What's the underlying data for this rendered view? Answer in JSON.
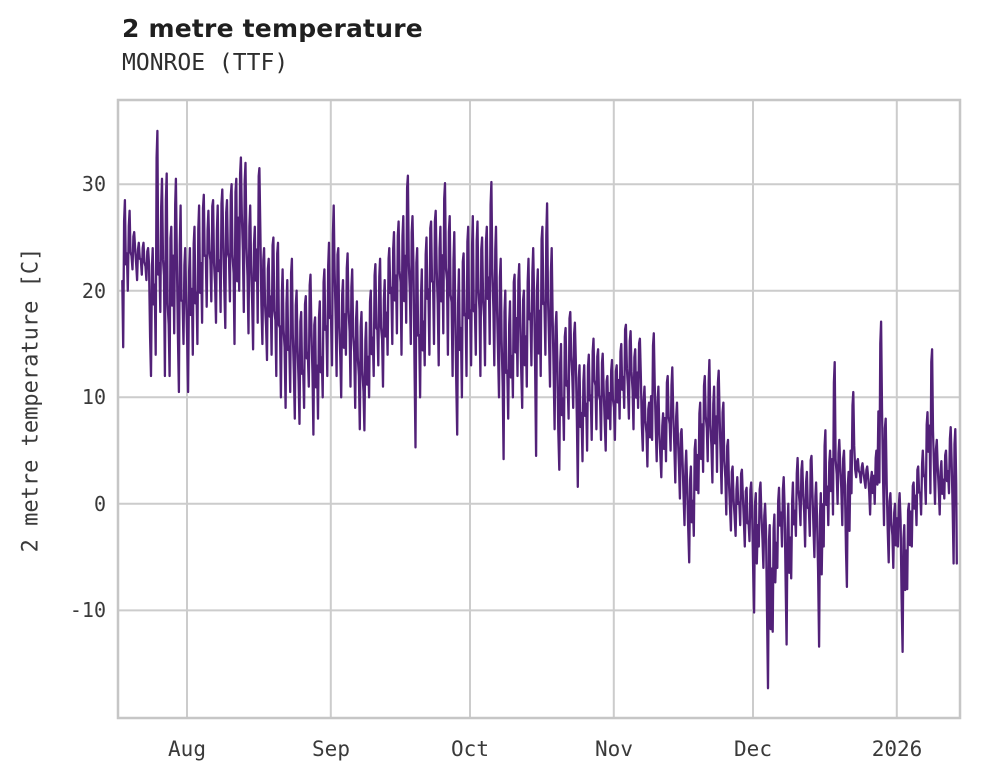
{
  "header": {
    "title": "2 metre temperature",
    "subtitle": "MONROE (TTF)"
  },
  "chart_data": {
    "type": "line",
    "title": "2 metre temperature",
    "subtitle": "MONROE (TTF)",
    "xlabel": "",
    "ylabel": "2 metre temperature [C]",
    "series_name": "2 metre temperature",
    "line_color": "#522178",
    "grid_color": "#cccccc",
    "border_color": "#c6c6c6",
    "tick_text_color": "#3a3a3a",
    "grid": true,
    "legend": false,
    "ylim": [
      -20.1,
      37.9
    ],
    "y_ticks": [
      30,
      20,
      10,
      0,
      -10
    ],
    "x_ticks": [
      {
        "label": "Aug",
        "day": 14
      },
      {
        "label": "Sep",
        "day": 45
      },
      {
        "label": "Oct",
        "day": 75
      },
      {
        "label": "Nov",
        "day": 106
      },
      {
        "label": "Dec",
        "day": 136
      },
      {
        "label": "2026",
        "day": 167
      }
    ],
    "x_offset_days": 0.87,
    "x_total_days": 181.5,
    "points_per_day_pattern": [
      0.05,
      0.25,
      0.45,
      0.62,
      0.82
    ],
    "daily_min_max": [
      [
        14.7,
        28.5
      ],
      [
        20,
        27.5
      ],
      [
        22,
        25.5
      ],
      [
        21,
        24.5
      ],
      [
        21.5,
        24.5
      ],
      [
        21,
        24
      ],
      [
        12,
        24
      ],
      [
        14,
        35
      ],
      [
        18,
        30.5
      ],
      [
        12,
        31
      ],
      [
        12,
        26
      ],
      [
        16,
        30.5
      ],
      [
        10.5,
        28
      ],
      [
        15,
        24
      ],
      [
        10.5,
        24
      ],
      [
        14,
        26
      ],
      [
        15,
        28
      ],
      [
        17,
        29
      ],
      [
        18.5,
        27.5
      ],
      [
        19,
        28.5
      ],
      [
        17,
        28
      ],
      [
        18,
        29.5
      ],
      [
        16.5,
        28.5
      ],
      [
        19,
        30
      ],
      [
        15,
        30.5
      ],
      [
        20,
        32.5
      ],
      [
        18,
        32
      ],
      [
        16,
        28
      ],
      [
        14.5,
        26
      ],
      [
        17,
        31.5
      ],
      [
        15,
        24
      ],
      [
        13.5,
        23
      ],
      [
        14,
        25
      ],
      [
        12,
        24.5
      ],
      [
        10,
        22
      ],
      [
        9,
        21
      ],
      [
        10.5,
        23
      ],
      [
        8,
        20
      ],
      [
        7.5,
        18
      ],
      [
        9,
        19.5
      ],
      [
        11,
        21.5
      ],
      [
        6.5,
        17.5
      ],
      [
        8,
        19
      ],
      [
        10,
        22
      ],
      [
        12,
        24.5
      ],
      [
        13,
        28
      ],
      [
        12,
        24
      ],
      [
        10,
        21
      ],
      [
        14,
        23.5
      ],
      [
        11,
        22
      ],
      [
        9,
        19
      ],
      [
        7,
        18
      ],
      [
        6.9,
        17
      ],
      [
        10,
        20
      ],
      [
        12,
        22.5
      ],
      [
        13,
        23
      ],
      [
        11,
        21
      ],
      [
        14,
        24
      ],
      [
        15,
        25.5
      ],
      [
        16,
        26.5
      ],
      [
        14,
        27
      ],
      [
        17,
        30.8
      ],
      [
        15,
        27
      ],
      [
        5.3,
        24
      ],
      [
        10,
        22
      ],
      [
        13,
        25
      ],
      [
        14,
        26.5
      ],
      [
        15,
        27.5
      ],
      [
        13,
        26
      ],
      [
        16,
        30.1
      ],
      [
        14,
        27
      ],
      [
        12,
        25.5
      ],
      [
        6.5,
        22
      ],
      [
        10,
        23.5
      ],
      [
        12,
        26
      ],
      [
        13,
        27
      ],
      [
        14,
        26.5
      ],
      [
        12,
        25
      ],
      [
        13,
        26
      ],
      [
        15,
        30.2
      ],
      [
        13,
        26
      ],
      [
        10,
        23
      ],
      [
        4.2,
        20
      ],
      [
        8,
        19
      ],
      [
        10,
        21.5
      ],
      [
        12,
        22.5
      ],
      [
        9,
        20
      ],
      [
        11,
        23
      ],
      [
        13,
        24
      ],
      [
        4.5,
        22
      ],
      [
        12,
        26
      ],
      [
        14,
        28.2
      ],
      [
        11,
        24
      ],
      [
        7,
        18
      ],
      [
        3.2,
        15
      ],
      [
        6,
        16.5
      ],
      [
        8,
        18
      ],
      [
        9,
        17
      ],
      [
        1.6,
        13
      ],
      [
        4,
        13
      ],
      [
        5,
        14
      ],
      [
        6,
        15.5
      ],
      [
        7,
        14.5
      ],
      [
        6,
        14.1
      ],
      [
        5,
        12
      ],
      [
        7,
        13.5
      ],
      [
        6,
        13
      ],
      [
        8,
        15
      ],
      [
        9,
        16.8
      ],
      [
        8,
        16.2
      ],
      [
        7,
        14.5
      ],
      [
        9,
        15.5
      ],
      [
        5,
        11
      ],
      [
        3.5,
        9.5
      ],
      [
        6,
        16
      ],
      [
        4,
        11
      ],
      [
        2.5,
        8.5
      ],
      [
        4,
        12
      ],
      [
        5,
        12.8
      ],
      [
        2,
        9.5
      ],
      [
        0.5,
        7
      ],
      [
        -2,
        5
      ],
      [
        -5.5,
        3.5
      ],
      [
        -3,
        6
      ],
      [
        1,
        9.5
      ],
      [
        3,
        12
      ],
      [
        4,
        13.5
      ],
      [
        2,
        11
      ],
      [
        3,
        12.5
      ],
      [
        1,
        9.5
      ],
      [
        -1,
        6
      ],
      [
        -2.5,
        3.5
      ],
      [
        -3,
        2.5
      ],
      [
        -2,
        3.2
      ],
      [
        -4,
        1.5
      ],
      [
        -3.5,
        2
      ],
      [
        -10.2,
        1
      ],
      [
        -4,
        2
      ],
      [
        -6,
        0
      ],
      [
        -17.3,
        -2
      ],
      [
        -12,
        -1
      ],
      [
        -6,
        1.5
      ],
      [
        -4,
        2.5
      ],
      [
        -13.2,
        0
      ],
      [
        -7,
        2
      ],
      [
        -3,
        4.3
      ],
      [
        -2,
        4
      ],
      [
        -4,
        3
      ],
      [
        -3,
        4.5
      ],
      [
        -5,
        2
      ],
      [
        -13.4,
        1
      ],
      [
        -4,
        6.9
      ],
      [
        -2,
        5
      ],
      [
        -1,
        13.3
      ],
      [
        0,
        6
      ],
      [
        -2,
        5
      ],
      [
        -7.8,
        3
      ],
      [
        1,
        10.5
      ],
      [
        2.5,
        4.2
      ],
      [
        2,
        3.8
      ],
      [
        1.5,
        3.5
      ],
      [
        -1,
        3
      ],
      [
        0,
        5
      ],
      [
        2,
        17.1
      ],
      [
        -2,
        8
      ],
      [
        -5.5,
        1
      ],
      [
        -6,
        0
      ],
      [
        -4,
        1
      ],
      [
        -13.9,
        -2
      ],
      [
        -8,
        0
      ],
      [
        -4,
        2
      ],
      [
        -2,
        3.5
      ],
      [
        -1,
        5
      ],
      [
        0,
        8.6
      ],
      [
        1,
        14.5
      ],
      [
        0,
        6
      ],
      [
        -1,
        4
      ],
      [
        0.5,
        5
      ],
      [
        1,
        7.2
      ],
      [
        -5.6,
        7
      ]
    ]
  }
}
